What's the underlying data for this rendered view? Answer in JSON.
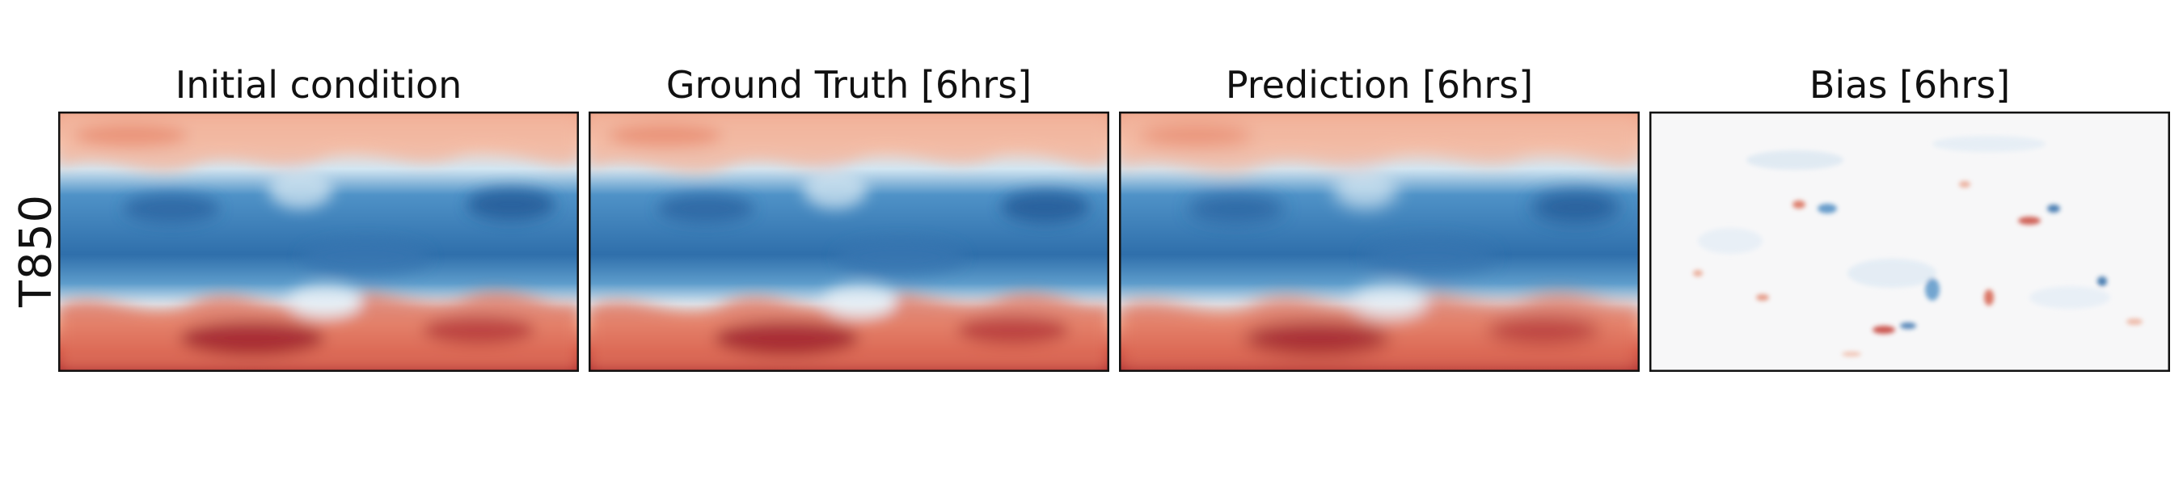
{
  "figure": {
    "row_label": "T850",
    "panels": [
      {
        "id": "initial",
        "title": "Initial condition",
        "kind": "field",
        "colormap": "RdBu_r"
      },
      {
        "id": "truth",
        "title": "Ground Truth [6hrs]",
        "kind": "field",
        "colormap": "RdBu_r"
      },
      {
        "id": "prediction",
        "title": "Prediction [6hrs]",
        "kind": "field",
        "colormap": "RdBu_r"
      },
      {
        "id": "bias",
        "title": "Bias [6hrs]",
        "kind": "difference",
        "colormap": "RdBu_r"
      }
    ],
    "colors": {
      "warm_dark": "#8f1d25",
      "warm_mid": "#d9614e",
      "warm_light": "#f4b59a",
      "cold_light": "#c9e0ef",
      "cold_mid": "#5a9bcb",
      "cold_dark": "#1f5d99",
      "neutral": "#f7f7f7"
    }
  }
}
